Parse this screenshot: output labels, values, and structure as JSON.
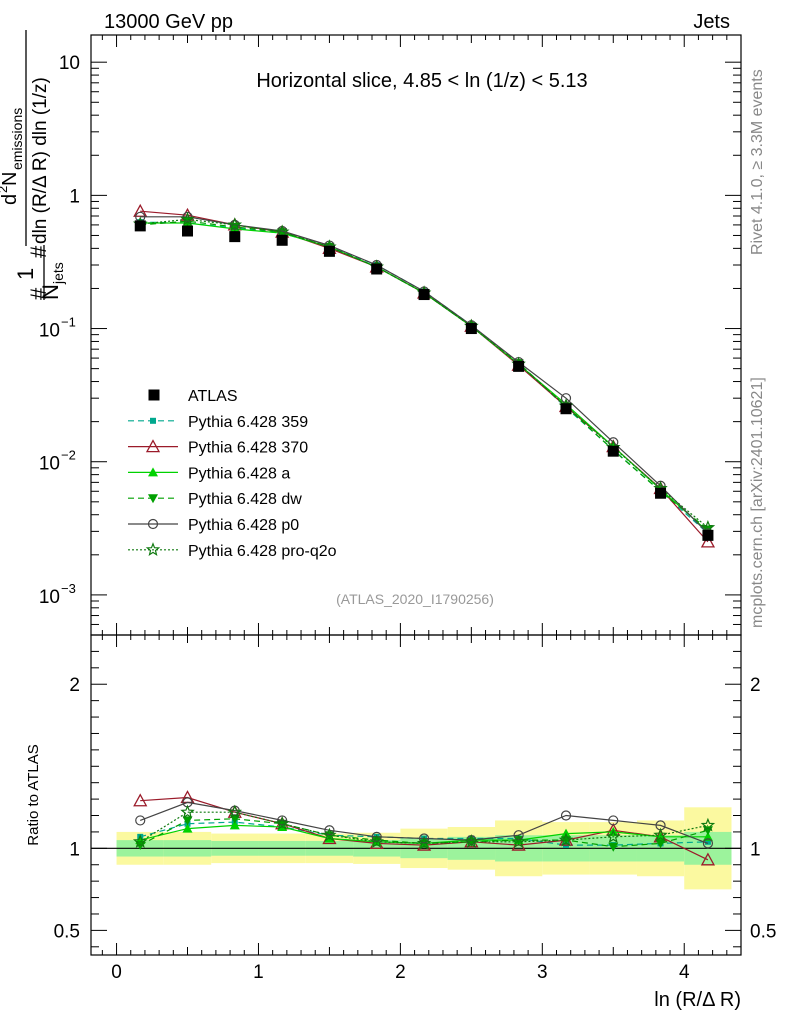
{
  "header": {
    "left": "13000 GeV pp",
    "right": "Jets",
    "side_top": "Rivet 4.1.0, ≥ 3.3M events",
    "side_bottom": "mcplots.cern.ch [arXiv:2401.10621]",
    "analysis_id": "(ATLAS_2020_I1790256)"
  },
  "chart_data": {
    "type": "line",
    "title": "Horizontal slice, 4.85 < ln (1/z) < 5.13",
    "xlabel": "ln (R/Δ R)",
    "ylabel": "#frac{1}{N_{jets}} #frac{d^{2} N_{emissions}}{dln (R/Δ R) dln (1/z)}",
    "ylabel_parts": {
      "n_jets": "N",
      "n_jets_sub": "jets",
      "num_d": "d",
      "num_sup": "2",
      "num_n": "N",
      "num_sub": "emissions",
      "den": "dln (R/Δ R) dln (1/z)",
      "one": "1",
      "hash": "#"
    },
    "ratio_ylabel": "Ratio to ATLAS",
    "xlim": [
      -0.18,
      4.4
    ],
    "ylim": [
      0.0005,
      16
    ],
    "yscale": "log",
    "ratio_ylim": [
      0.35,
      2.3
    ],
    "x_ticks": [
      0,
      1,
      2,
      3,
      4
    ],
    "x_tick_labels": [
      "0",
      "1",
      "2",
      "3",
      "4"
    ],
    "y_tick_labels": {
      "1e-3": "10",
      "1e-3_exp": "−3",
      "1e-2": "10",
      "1e-2_exp": "−2",
      "1e-1": "10",
      "1e-1_exp": "−1",
      "1": "1",
      "10": "10"
    },
    "ratio_y_ticks": [
      0.5,
      1,
      2
    ],
    "ratio_y_tick_labels": [
      "0.5",
      "1",
      "2"
    ],
    "x": [
      0.167,
      0.5,
      0.833,
      1.167,
      1.5,
      1.833,
      2.167,
      2.5,
      2.833,
      3.167,
      3.5,
      3.833,
      4.167
    ],
    "bin_edges": [
      0,
      0.333,
      0.667,
      1,
      1.333,
      1.667,
      2,
      2.333,
      2.667,
      3,
      3.333,
      3.667,
      4,
      4.333
    ],
    "atlas": [
      0.59,
      0.54,
      0.49,
      0.46,
      0.38,
      0.28,
      0.18,
      0.1,
      0.052,
      0.025,
      0.012,
      0.0058,
      0.0028
    ],
    "band_inner": [
      0.05,
      0.05,
      0.045,
      0.045,
      0.045,
      0.05,
      0.06,
      0.07,
      0.08,
      0.08,
      0.08,
      0.08,
      0.1
    ],
    "band_outer": [
      0.1,
      0.1,
      0.09,
      0.09,
      0.09,
      0.095,
      0.12,
      0.13,
      0.17,
      0.16,
      0.16,
      0.17,
      0.25
    ],
    "series": [
      {
        "name": "Pythia 6.428 359",
        "color": "#00a88e",
        "dash": "6,4",
        "marker": "square-small",
        "values": [
          0.63,
          0.62,
          0.57,
          0.52,
          0.41,
          0.3,
          0.19,
          0.106,
          0.055,
          0.0255,
          0.0123,
          0.006,
          0.0029
        ],
        "ratio": [
          1.07,
          1.15,
          1.16,
          1.13,
          1.08,
          1.07,
          1.06,
          1.06,
          1.06,
          1.02,
          1.02,
          1.03,
          1.04
        ]
      },
      {
        "name": "Pythia 6.428 370",
        "color": "#9b1b2a",
        "dash": "",
        "marker": "triangle-open",
        "values": [
          0.76,
          0.71,
          0.6,
          0.53,
          0.4,
          0.29,
          0.185,
          0.104,
          0.053,
          0.026,
          0.013,
          0.0063,
          0.0025
        ],
        "ratio": [
          1.29,
          1.31,
          1.22,
          1.15,
          1.06,
          1.03,
          1.02,
          1.04,
          1.02,
          1.05,
          1.11,
          1.07,
          0.93
        ]
      },
      {
        "name": "Pythia 6.428 a",
        "color": "#00d200",
        "dash": "",
        "marker": "triangle-filled",
        "values": [
          0.62,
          0.62,
          0.56,
          0.52,
          0.41,
          0.29,
          0.185,
          0.104,
          0.054,
          0.027,
          0.013,
          0.0062,
          0.003
        ],
        "ratio": [
          1.05,
          1.12,
          1.14,
          1.13,
          1.06,
          1.04,
          1.03,
          1.05,
          1.05,
          1.09,
          1.1,
          1.07,
          1.07
        ]
      },
      {
        "name": "Pythia 6.428 dw",
        "color": "#00a000",
        "dash": "6,4",
        "marker": "triangle-down-filled",
        "values": [
          0.6,
          0.64,
          0.58,
          0.53,
          0.41,
          0.29,
          0.185,
          0.104,
          0.055,
          0.026,
          0.0122,
          0.006,
          0.0031
        ],
        "ratio": [
          1.02,
          1.17,
          1.18,
          1.15,
          1.08,
          1.05,
          1.03,
          1.04,
          1.05,
          1.05,
          1.01,
          1.03,
          1.11
        ]
      },
      {
        "name": "Pythia 6.428 p0",
        "color": "#444444",
        "dash": "",
        "marker": "circle-open",
        "values": [
          0.69,
          0.69,
          0.6,
          0.54,
          0.42,
          0.3,
          0.19,
          0.106,
          0.056,
          0.03,
          0.014,
          0.0066,
          0.0029
        ],
        "ratio": [
          1.17,
          1.28,
          1.23,
          1.17,
          1.11,
          1.07,
          1.06,
          1.05,
          1.08,
          1.2,
          1.17,
          1.14,
          1.03
        ]
      },
      {
        "name": "Pythia 6.428 pro-q2o",
        "color": "#107a10",
        "dash": "2,2",
        "marker": "star-open",
        "values": [
          0.61,
          0.66,
          0.6,
          0.53,
          0.41,
          0.29,
          0.185,
          0.104,
          0.054,
          0.0262,
          0.0128,
          0.0063,
          0.0032
        ],
        "ratio": [
          1.04,
          1.22,
          1.22,
          1.15,
          1.08,
          1.04,
          1.03,
          1.04,
          1.04,
          1.05,
          1.07,
          1.08,
          1.14
        ]
      }
    ]
  }
}
